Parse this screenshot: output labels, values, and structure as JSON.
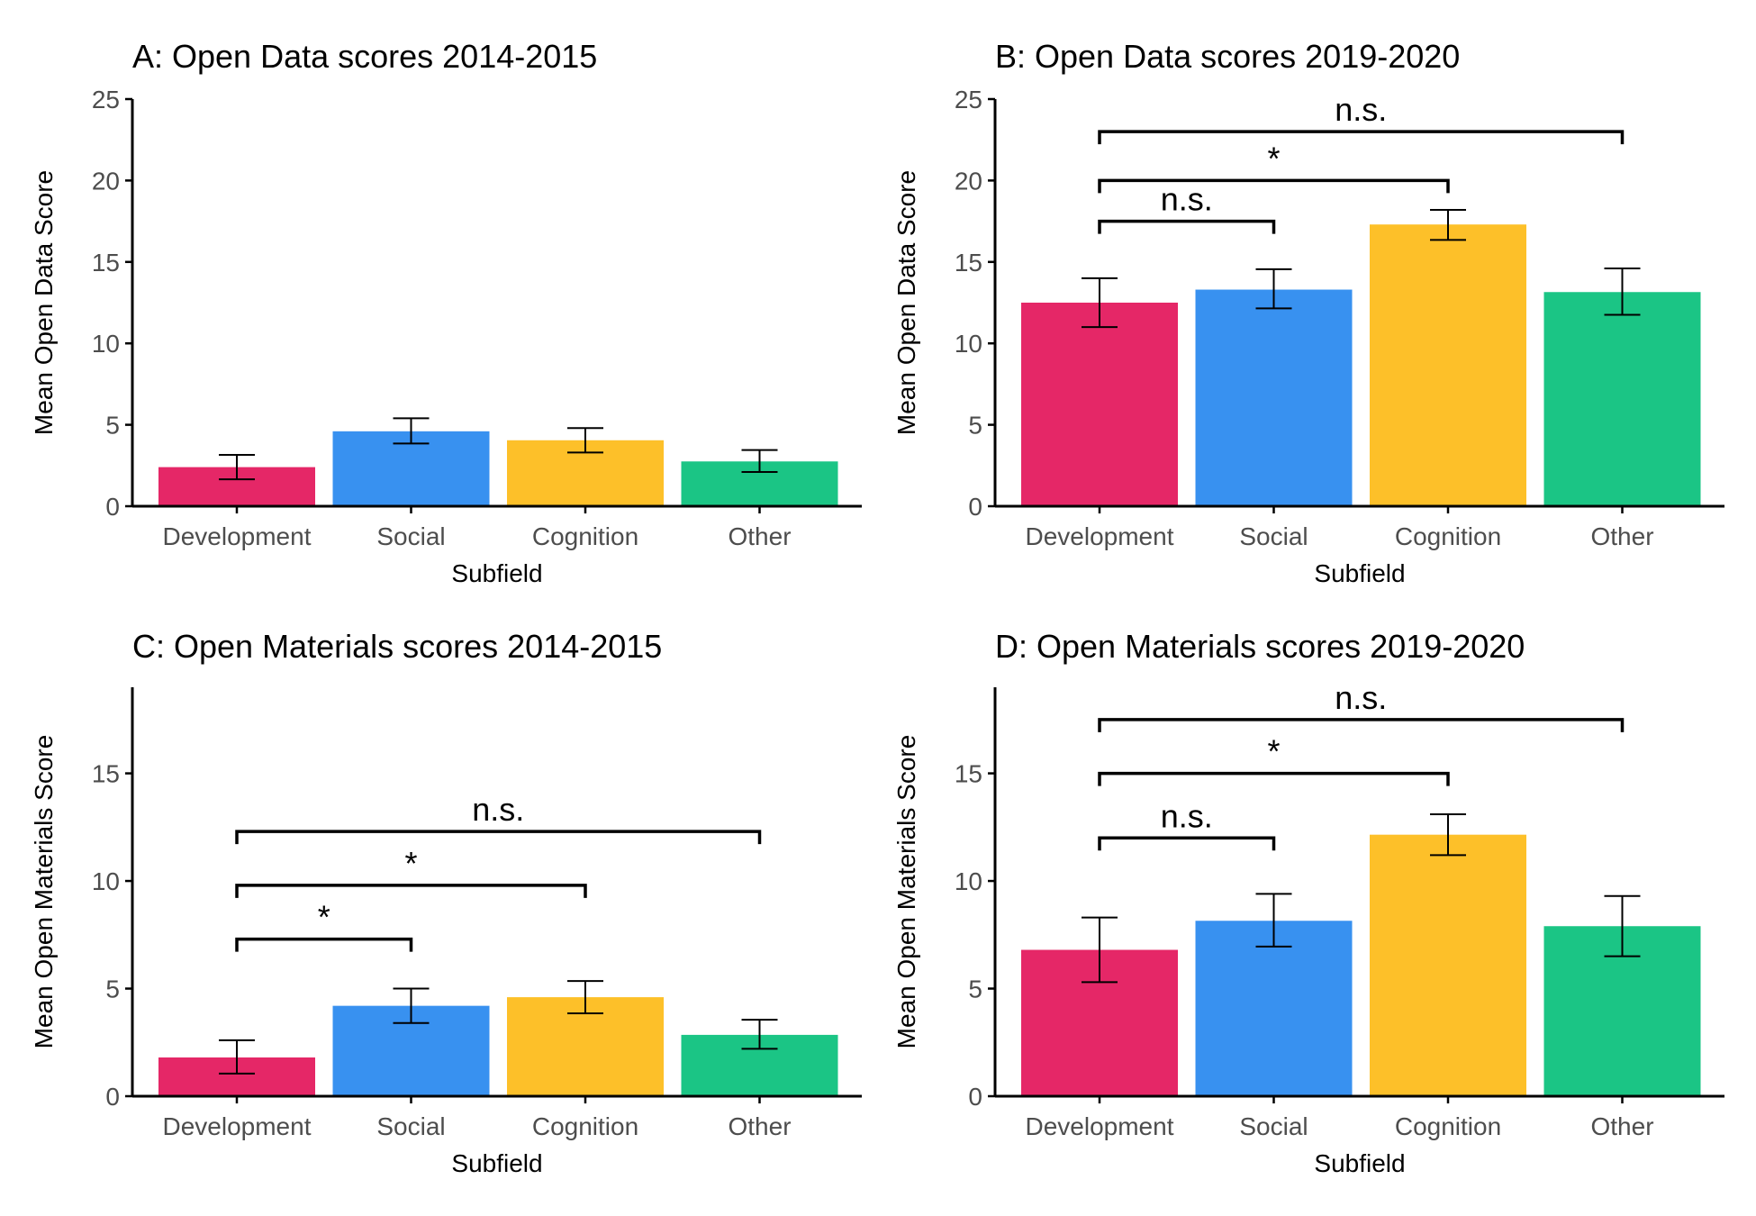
{
  "chart_data": [
    {
      "type": "bar",
      "panel": "A",
      "title": "A: Open Data scores 2014-2015",
      "xlabel": "Subfield",
      "ylabel": "Mean Open Data Score",
      "categories": [
        "Development",
        "Social",
        "Cognition",
        "Other"
      ],
      "values": [
        2.4,
        4.6,
        4.05,
        2.75
      ],
      "error_low": [
        1.65,
        3.85,
        3.3,
        2.1
      ],
      "error_high": [
        3.15,
        5.4,
        4.8,
        3.45
      ],
      "ylim": [
        0,
        25
      ],
      "yticks": [
        0,
        5,
        10,
        15,
        20,
        25
      ],
      "colors": [
        "#E52767",
        "#3891F0",
        "#FDC029",
        "#1BC585"
      ],
      "grid": false,
      "comparisons": []
    },
    {
      "type": "bar",
      "panel": "B",
      "title": "B: Open Data scores 2019-2020",
      "xlabel": "Subfield",
      "ylabel": "Mean Open Data Score",
      "categories": [
        "Development",
        "Social",
        "Cognition",
        "Other"
      ],
      "values": [
        12.5,
        13.3,
        17.3,
        13.15
      ],
      "error_low": [
        11.0,
        12.15,
        16.35,
        11.75
      ],
      "error_high": [
        14.0,
        14.55,
        18.2,
        14.6
      ],
      "ylim": [
        0,
        25
      ],
      "yticks": [
        0,
        5,
        10,
        15,
        20,
        25
      ],
      "colors": [
        "#E52767",
        "#3891F0",
        "#FDC029",
        "#1BC585"
      ],
      "grid": false,
      "comparisons": [
        {
          "from": 0,
          "to": 1,
          "y": 17.5,
          "label": "n.s."
        },
        {
          "from": 0,
          "to": 2,
          "y": 20.0,
          "label": "*"
        },
        {
          "from": 0,
          "to": 3,
          "y": 23.0,
          "label": "n.s."
        }
      ]
    },
    {
      "type": "bar",
      "panel": "C",
      "title": "C: Open Materials scores 2014-2015",
      "xlabel": "Subfield",
      "ylabel": "Mean Open Materials Score",
      "categories": [
        "Development",
        "Social",
        "Cognition",
        "Other"
      ],
      "values": [
        1.8,
        4.2,
        4.6,
        2.85
      ],
      "error_low": [
        1.05,
        3.4,
        3.85,
        2.2
      ],
      "error_high": [
        2.6,
        5.0,
        5.35,
        3.55
      ],
      "ylim": [
        0,
        19
      ],
      "yticks": [
        0,
        5,
        10,
        15
      ],
      "colors": [
        "#E52767",
        "#3891F0",
        "#FDC029",
        "#1BC585"
      ],
      "grid": false,
      "comparisons": [
        {
          "from": 0,
          "to": 1,
          "y": 7.3,
          "label": "*"
        },
        {
          "from": 0,
          "to": 2,
          "y": 9.8,
          "label": "*"
        },
        {
          "from": 0,
          "to": 3,
          "y": 12.3,
          "label": "n.s."
        }
      ]
    },
    {
      "type": "bar",
      "panel": "D",
      "title": "D: Open Materials scores 2019-2020",
      "xlabel": "Subfield",
      "ylabel": "Mean Open Materials Score",
      "categories": [
        "Development",
        "Social",
        "Cognition",
        "Other"
      ],
      "values": [
        6.8,
        8.15,
        12.15,
        7.9
      ],
      "error_low": [
        5.3,
        6.95,
        11.2,
        6.5
      ],
      "error_high": [
        8.3,
        9.4,
        13.1,
        9.3
      ],
      "ylim": [
        0,
        19
      ],
      "yticks": [
        0,
        5,
        10,
        15
      ],
      "colors": [
        "#E52767",
        "#3891F0",
        "#FDC029",
        "#1BC585"
      ],
      "grid": false,
      "comparisons": [
        {
          "from": 0,
          "to": 1,
          "y": 12.0,
          "label": "n.s."
        },
        {
          "from": 0,
          "to": 2,
          "y": 15.0,
          "label": "*"
        },
        {
          "from": 0,
          "to": 3,
          "y": 17.5,
          "label": "n.s."
        }
      ]
    }
  ]
}
